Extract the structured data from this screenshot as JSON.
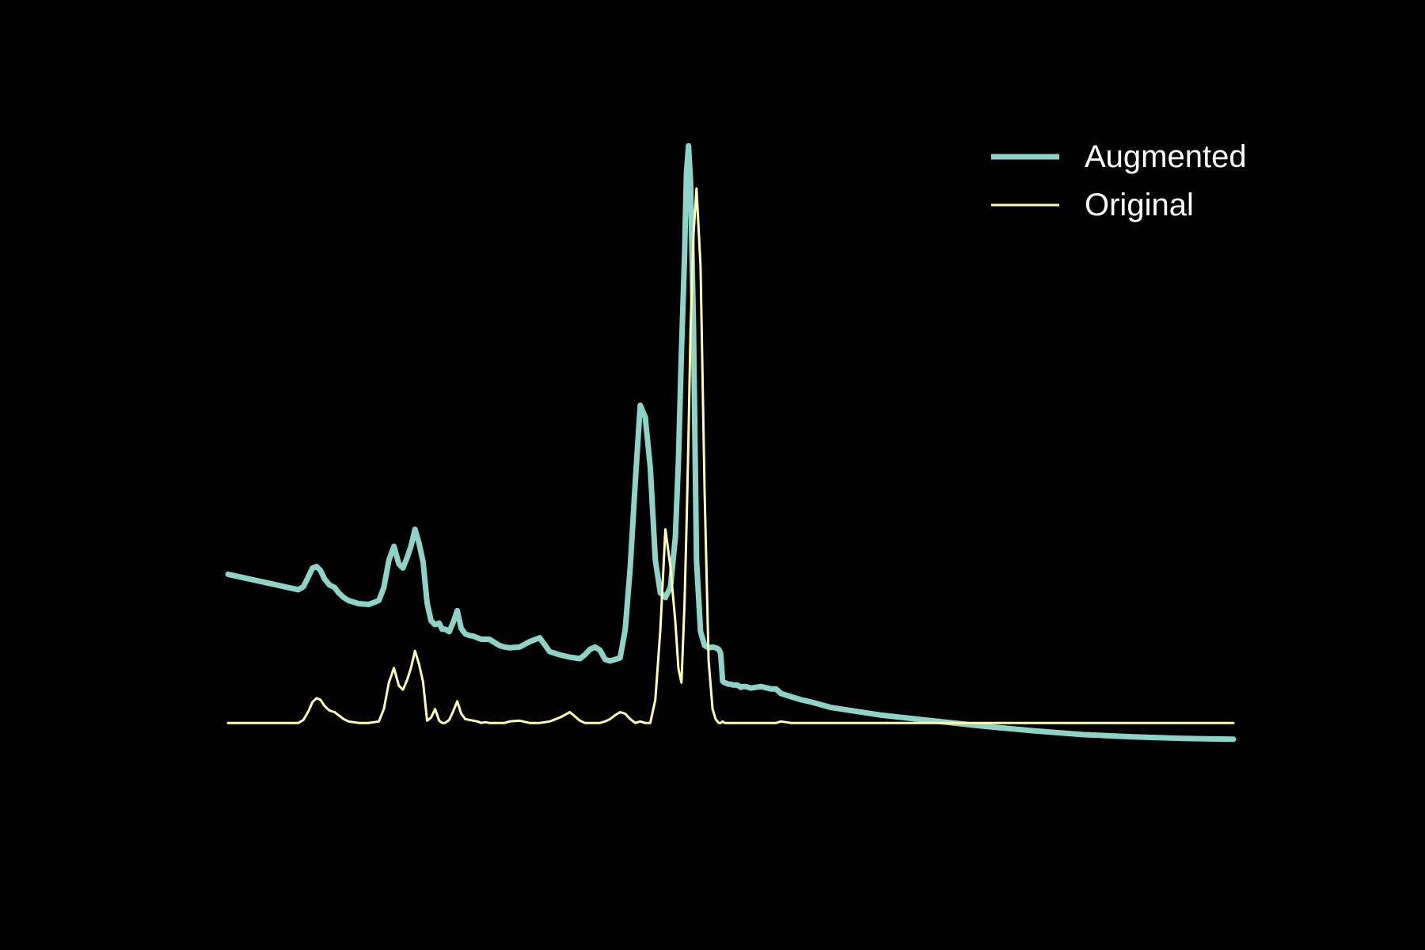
{
  "chart_data": {
    "type": "line",
    "background": "#000000",
    "axes_visible": false,
    "grid": false,
    "legend_position": "top-right",
    "xlim": [
      0,
      1000
    ],
    "ylim": [
      -150,
      780
    ],
    "series": [
      {
        "name": "Augmented",
        "color": "#8dd3c7",
        "stroke": "thick",
        "x": [
          0,
          70,
          75,
          80,
          84,
          88,
          92,
          96,
          101,
          106,
          110,
          115,
          120,
          130,
          140,
          150,
          155,
          160,
          165,
          170,
          174,
          178,
          182,
          186,
          190,
          194,
          198,
          202,
          206,
          210,
          213,
          216,
          220,
          224,
          228,
          232,
          236,
          240,
          244,
          248,
          252,
          256,
          260,
          265,
          270,
          275,
          280,
          290,
          300,
          310,
          320,
          330,
          340,
          350,
          355,
          360,
          365,
          370,
          375,
          380,
          385,
          390,
          395,
          400,
          405,
          410,
          415,
          420,
          425,
          430,
          435,
          440,
          445,
          448,
          451,
          454,
          456,
          458,
          460,
          463,
          466,
          470,
          474,
          478,
          482,
          485,
          488,
          490,
          492,
          494,
          496,
          498,
          500,
          502,
          504,
          506,
          508,
          510,
          512,
          515,
          520,
          530,
          540,
          545,
          550,
          560,
          570,
          580,
          600,
          650,
          700,
          750,
          800,
          850,
          900,
          950,
          1000
        ],
        "y": [
          192,
          172,
          176,
          189,
          200,
          202,
          197,
          186,
          178,
          175,
          168,
          162,
          158,
          154,
          153,
          158,
          175,
          210,
          228,
          205,
          200,
          213,
          228,
          250,
          232,
          208,
          155,
          132,
          127,
          129,
          121,
          121,
          118,
          130,
          145,
          122,
          115,
          113,
          112,
          110,
          108,
          108,
          108,
          104,
          100,
          98,
          97,
          98,
          105,
          110,
          92,
          88,
          85,
          83,
          88,
          95,
          98,
          94,
          82,
          80,
          82,
          84,
          120,
          200,
          310,
          410,
          395,
          330,
          210,
          168,
          162,
          175,
          240,
          340,
          480,
          600,
          710,
          745,
          700,
          510,
          210,
          118,
          100,
          97,
          98,
          97,
          95,
          90,
          54,
          52,
          51,
          50,
          50,
          49,
          49,
          49,
          48,
          46,
          47,
          47,
          45,
          47,
          44,
          44,
          38,
          34,
          30,
          27,
          20,
          10,
          3,
          -4,
          -10,
          -15,
          -18,
          -20,
          -21
        ]
      },
      {
        "name": "Original",
        "color": "#ffffb3",
        "stroke": "thin",
        "x": [
          0,
          70,
          75,
          80,
          84,
          88,
          92,
          96,
          101,
          106,
          110,
          115,
          120,
          130,
          140,
          150,
          155,
          160,
          165,
          170,
          174,
          178,
          182,
          186,
          190,
          194,
          198,
          202,
          206,
          210,
          213,
          216,
          220,
          224,
          228,
          232,
          236,
          240,
          244,
          248,
          252,
          256,
          260,
          265,
          270,
          275,
          280,
          290,
          300,
          310,
          320,
          330,
          340,
          350,
          355,
          360,
          365,
          370,
          375,
          380,
          385,
          390,
          395,
          400,
          405,
          410,
          415,
          420,
          425,
          430,
          435,
          440,
          445,
          448,
          451,
          454,
          456,
          458,
          460,
          463,
          466,
          470,
          474,
          478,
          482,
          485,
          488,
          490,
          492,
          494,
          496,
          498,
          500,
          502,
          504,
          506,
          508,
          510,
          512,
          515,
          520,
          530,
          540,
          545,
          550,
          560,
          570,
          580,
          600,
          650,
          700,
          750,
          800,
          850,
          900,
          950,
          1000
        ],
        "y": [
          0,
          0,
          4,
          15,
          27,
          32,
          30,
          22,
          16,
          14,
          10,
          5,
          2,
          0,
          0,
          2,
          18,
          52,
          71,
          48,
          43,
          55,
          71,
          93,
          76,
          53,
          3,
          7,
          18,
          3,
          0,
          0,
          4,
          15,
          28,
          12,
          5,
          4,
          3,
          2,
          0,
          1,
          0,
          0,
          0,
          0,
          2,
          3,
          0,
          0,
          2,
          7,
          14,
          3,
          0,
          0,
          0,
          0,
          2,
          5,
          10,
          14,
          12,
          5,
          0,
          2,
          0,
          0,
          30,
          120,
          250,
          202,
          130,
          70,
          52,
          152,
          250,
          370,
          505,
          630,
          690,
          590,
          300,
          80,
          18,
          5,
          0,
          0,
          2,
          0,
          0,
          0,
          0,
          0,
          0,
          0,
          0,
          0,
          0,
          0,
          0,
          0,
          0,
          0,
          2,
          0,
          0,
          0,
          0,
          0,
          0,
          0,
          0,
          0,
          0,
          0,
          0
        ]
      }
    ]
  }
}
